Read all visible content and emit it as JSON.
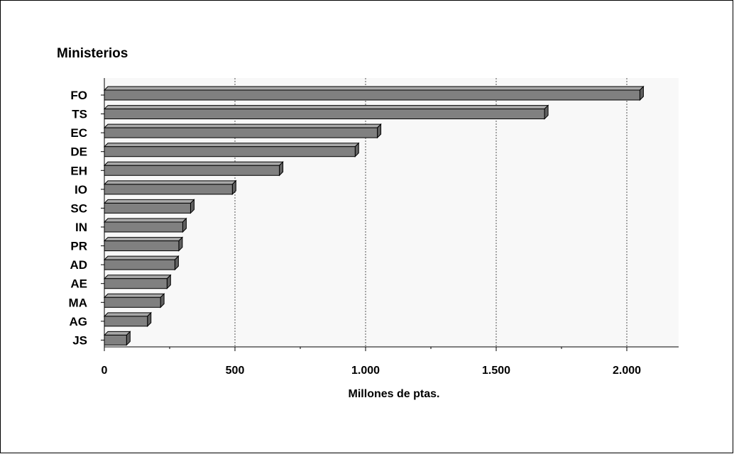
{
  "chart_data": {
    "type": "bar",
    "orientation": "horizontal",
    "title": "Ministerios",
    "xlabel": "Millones de ptas.",
    "categories": [
      "FO",
      "TS",
      "EC",
      "DE",
      "EH",
      "IO",
      "SC",
      "IN",
      "PR",
      "AD",
      "AE",
      "MA",
      "AG",
      "JS"
    ],
    "values": [
      2050,
      1685,
      1045,
      960,
      670,
      490,
      330,
      300,
      285,
      270,
      240,
      215,
      165,
      85
    ],
    "xticks": [
      "0",
      "500",
      "1.000",
      "1.500",
      "2.000"
    ],
    "xlim": [
      0,
      2200
    ],
    "grid": "vertical dashed",
    "colors": {
      "bar_front": "#808080",
      "bar_top": "#a8a8a8",
      "bar_side": "#606060",
      "plot_bg": "#f8f8f8"
    }
  }
}
